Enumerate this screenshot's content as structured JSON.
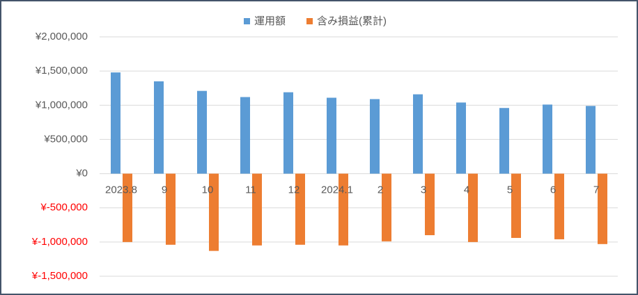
{
  "chart_data": {
    "type": "bar",
    "categories": [
      "2023.8",
      "9",
      "10",
      "11",
      "12",
      "2024.1",
      "2",
      "3",
      "4",
      "5",
      "6",
      "7"
    ],
    "series": [
      {
        "name": "運用額",
        "color": "#5b9bd5",
        "values": [
          1480000,
          1350000,
          1210000,
          1120000,
          1190000,
          1110000,
          1090000,
          1160000,
          1040000,
          960000,
          1010000,
          990000
        ]
      },
      {
        "name": "含み損益(累計)",
        "color": "#ed7d31",
        "values": [
          -1000000,
          -1040000,
          -1130000,
          -1050000,
          -1040000,
          -1050000,
          -990000,
          -900000,
          -1000000,
          -940000,
          -960000,
          -1030000
        ]
      }
    ],
    "ylim": [
      -1500000,
      2000000
    ],
    "yticks": [
      {
        "value": -1500000,
        "label": "¥-1,500,000"
      },
      {
        "value": -1000000,
        "label": "¥-1,000,000"
      },
      {
        "value": -500000,
        "label": "¥-500,000"
      },
      {
        "value": 0,
        "label": "¥0"
      },
      {
        "value": 500000,
        "label": "¥500,000"
      },
      {
        "value": 1000000,
        "label": "¥1,000,000"
      },
      {
        "value": 1500000,
        "label": "¥1,500,000"
      },
      {
        "value": 2000000,
        "label": "¥2,000,000"
      }
    ],
    "negative_tick_color": "#ff0000",
    "grid": true,
    "legend": "top"
  }
}
